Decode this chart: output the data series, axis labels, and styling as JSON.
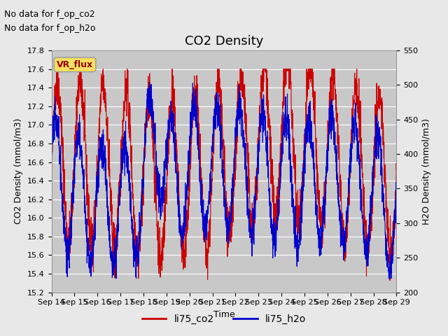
{
  "title": "CO2 Density",
  "xlabel": "Time",
  "ylabel_left": "CO2 Density (mmol/m3)",
  "ylabel_right": "H2O Density (mmol/m3)",
  "ylim_left": [
    15.2,
    17.8
  ],
  "ylim_right": [
    200,
    550
  ],
  "yticks_left": [
    15.2,
    15.4,
    15.6,
    15.8,
    16.0,
    16.2,
    16.4,
    16.6,
    16.8,
    17.0,
    17.2,
    17.4,
    17.6,
    17.8
  ],
  "yticks_right": [
    200,
    250,
    300,
    350,
    400,
    450,
    500,
    550
  ],
  "xtick_labels": [
    "Sep 14",
    "Sep 15",
    "Sep 16",
    "Sep 17",
    "Sep 18",
    "Sep 19",
    "Sep 20",
    "Sep 21",
    "Sep 22",
    "Sep 23",
    "Sep 24",
    "Sep 25",
    "Sep 26",
    "Sep 27",
    "Sep 28",
    "Sep 29"
  ],
  "no_data_text1": "No data for f_op_co2",
  "no_data_text2": "No data for f_op_h2o",
  "vr_flux_label": "VR_flux",
  "legend_entries": [
    "li75_co2",
    "li75_h2o"
  ],
  "color_co2": "#CC0000",
  "color_h2o": "#0000CC",
  "bg_color": "#E8E8E8",
  "plot_bg_color": "#C8C8C8",
  "grid_color": "#FFFFFF",
  "title_fontsize": 13,
  "label_fontsize": 9,
  "tick_fontsize": 8,
  "annotation_fontsize": 9,
  "seed": 42,
  "n_days": 15,
  "points_per_day": 144
}
